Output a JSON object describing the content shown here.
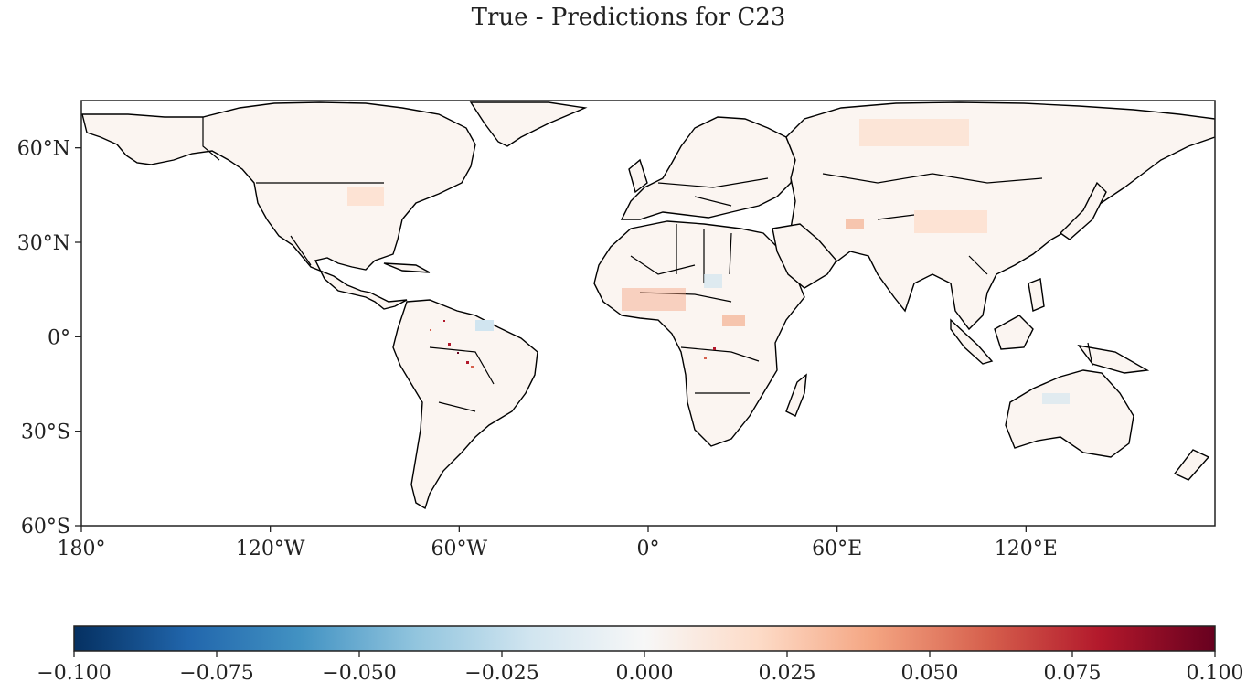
{
  "title": "True - Predictions for C23",
  "map": {
    "lon_range": [
      -180,
      180
    ],
    "lat_range": [
      -60,
      75
    ],
    "lat_ticks": [
      {
        "value": 60,
        "label": "60°N"
      },
      {
        "value": 30,
        "label": "30°N"
      },
      {
        "value": 0,
        "label": "0°"
      },
      {
        "value": -30,
        "label": "30°S"
      },
      {
        "value": -60,
        "label": "60°S"
      }
    ],
    "lon_ticks": [
      {
        "value": -180,
        "label": "180°"
      },
      {
        "value": -120,
        "label": "120°W"
      },
      {
        "value": -60,
        "label": "60°W"
      },
      {
        "value": 0,
        "label": "0°"
      },
      {
        "value": 60,
        "label": "60°E"
      },
      {
        "value": 120,
        "label": "120°E"
      }
    ]
  },
  "colorbar": {
    "colormap": "RdBu_r",
    "range": [
      -0.1,
      0.1
    ],
    "colors": [
      "#053061",
      "#2166ac",
      "#4393c3",
      "#92c5de",
      "#d1e5f0",
      "#f7f7f7",
      "#fddbc7",
      "#f4a582",
      "#d6604d",
      "#b2182b",
      "#67001f"
    ],
    "ticks": [
      {
        "value": -0.1,
        "label": "−0.100"
      },
      {
        "value": -0.075,
        "label": "−0.075"
      },
      {
        "value": -0.05,
        "label": "−0.050"
      },
      {
        "value": -0.025,
        "label": "−0.025"
      },
      {
        "value": 0,
        "label": "0.000"
      },
      {
        "value": 0.025,
        "label": "0.025"
      },
      {
        "value": 0.05,
        "label": "0.050"
      },
      {
        "value": 0.075,
        "label": "0.075"
      },
      {
        "value": 0.1,
        "label": "0.100"
      }
    ]
  }
}
